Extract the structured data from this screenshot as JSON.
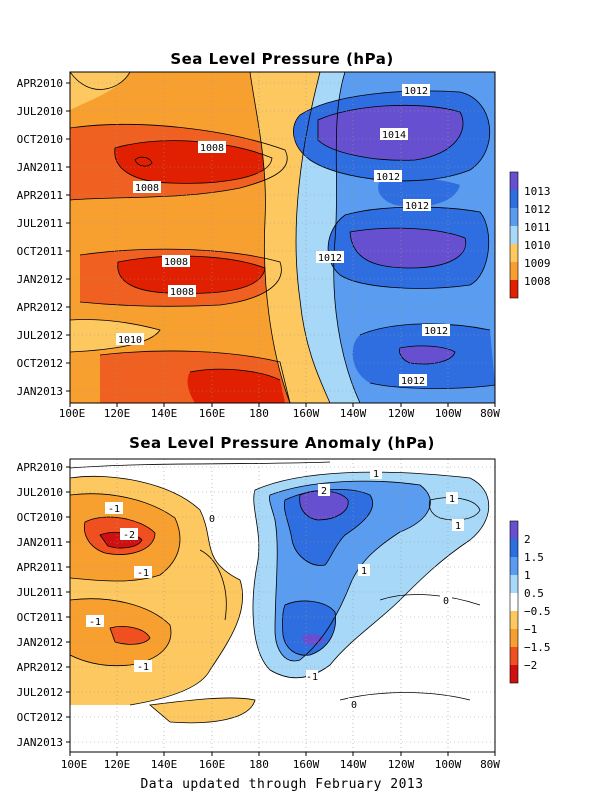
{
  "chart_data": [
    {
      "type": "heatmap",
      "title": "Sea Level Pressure (hPa)",
      "x_ticks": [
        "100E",
        "120E",
        "140E",
        "160E",
        "180",
        "160W",
        "140W",
        "120W",
        "100W",
        "80W"
      ],
      "y_ticks": [
        "APR2010",
        "JUL2010",
        "OCT2010",
        "JAN2011",
        "APR2011",
        "JUL2011",
        "OCT2011",
        "JAN2012",
        "APR2012",
        "JUL2012",
        "OCT2012",
        "JAN2013"
      ],
      "colorbar_levels": [
        "1013",
        "1012",
        "1011",
        "1010",
        "1009",
        "1008"
      ],
      "colors": [
        "#e02000",
        "#f06020",
        "#f7a030",
        "#fdc860",
        "#a8d8f8",
        "#5a9cf0",
        "#2e6ee0",
        "#6650d0"
      ],
      "contour_labels": [
        "1012",
        "1014",
        "1008",
        "1008",
        "1012",
        "1012",
        "1012",
        "1008",
        "1008",
        "1012",
        "1010",
        "1012"
      ],
      "grid": true
    },
    {
      "type": "heatmap",
      "title": "Sea Level Pressure Anomaly (hPa)",
      "x_ticks": [
        "100E",
        "120E",
        "140E",
        "160E",
        "180",
        "160W",
        "140W",
        "120W",
        "100W",
        "80W"
      ],
      "y_ticks": [
        "APR2010",
        "JUL2010",
        "OCT2010",
        "JAN2011",
        "APR2011",
        "JUL2011",
        "OCT2011",
        "JAN2012",
        "APR2012",
        "JUL2012",
        "OCT2012",
        "JAN2013"
      ],
      "colorbar_levels": [
        "2",
        "1.5",
        "1",
        "0.5",
        "−0.5",
        "−1",
        "−1.5",
        "−2"
      ],
      "colors": [
        "#d01010",
        "#f05020",
        "#f7a030",
        "#fdc860",
        "#ffffff",
        "#a8d8f8",
        "#5a9cf0",
        "#2e6ee0",
        "#6650d0"
      ],
      "contour_labels": [
        "1",
        "2",
        "1",
        "1",
        "-1",
        "-2",
        "-1",
        "0",
        "1",
        "-1",
        "0",
        "-1",
        "-1",
        "0"
      ],
      "grid": true
    }
  ],
  "footer": "Data updated through February 2013"
}
